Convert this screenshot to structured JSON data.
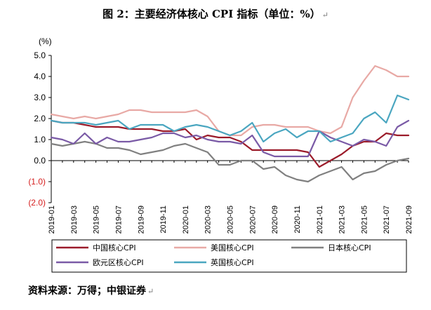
{
  "title": "图 2：主要经济体核心 CPI 指标（单位：%）",
  "title_mark": "↵",
  "source": "资料来源：万得；中银证券",
  "source_mark": "↵",
  "chart_data": {
    "type": "line",
    "ylabel": "(%)",
    "ylim": [
      -2.0,
      5.0
    ],
    "y_ticks": [
      {
        "value": 5.0,
        "label": "5.0"
      },
      {
        "value": 4.0,
        "label": "4.0"
      },
      {
        "value": 3.0,
        "label": "3.0"
      },
      {
        "value": 2.0,
        "label": "2.0"
      },
      {
        "value": 1.0,
        "label": "1.0"
      },
      {
        "value": 0.0,
        "label": "0.0"
      },
      {
        "value": -1.0,
        "label": "(1.0)"
      },
      {
        "value": -2.0,
        "label": "(2.0)"
      }
    ],
    "negative_tick_color": "#d62020",
    "grid": false,
    "legend_position": "bottom",
    "x": [
      "2019-01",
      "2019-02",
      "2019-03",
      "2019-04",
      "2019-05",
      "2019-06",
      "2019-07",
      "2019-08",
      "2019-09",
      "2019-10",
      "2019-11",
      "2019-12",
      "2020-01",
      "2020-02",
      "2020-03",
      "2020-04",
      "2020-05",
      "2020-06",
      "2020-07",
      "2020-08",
      "2020-09",
      "2020-10",
      "2020-11",
      "2020-12",
      "2021-01",
      "2021-02",
      "2021-03",
      "2021-04",
      "2021-05",
      "2021-06",
      "2021-07",
      "2021-08",
      "2021-09"
    ],
    "x_tick_labels": [
      "2019-01",
      "2019-03",
      "2019-05",
      "2019-07",
      "2019-09",
      "2019-11",
      "2020-01",
      "2020-03",
      "2020-05",
      "2020-07",
      "2020-09",
      "2020-11",
      "2021-01",
      "2021-03",
      "2021-05",
      "2021-07",
      "2021-09"
    ],
    "series": [
      {
        "name": "中国核心CPI",
        "color": "#9b1b2a",
        "values": [
          1.9,
          1.8,
          1.8,
          1.7,
          1.6,
          1.6,
          1.6,
          1.5,
          1.5,
          1.5,
          1.4,
          1.4,
          1.5,
          1.0,
          1.2,
          1.1,
          1.1,
          0.9,
          0.5,
          0.5,
          0.5,
          0.5,
          0.5,
          0.4,
          -0.3,
          0.0,
          0.3,
          0.7,
          0.9,
          0.9,
          1.3,
          1.2,
          1.2
        ]
      },
      {
        "name": "美国核心CPI",
        "color": "#e8a9a5",
        "values": [
          2.2,
          2.1,
          2.0,
          2.1,
          2.0,
          2.1,
          2.2,
          2.4,
          2.4,
          2.3,
          2.3,
          2.3,
          2.3,
          2.4,
          2.1,
          1.4,
          1.2,
          1.2,
          1.6,
          1.7,
          1.7,
          1.6,
          1.6,
          1.6,
          1.4,
          1.3,
          1.6,
          3.0,
          3.8,
          4.5,
          4.3,
          4.0,
          4.0
        ]
      },
      {
        "name": "日本核心CPI",
        "color": "#808080",
        "values": [
          0.8,
          0.7,
          0.8,
          0.9,
          0.8,
          0.6,
          0.6,
          0.5,
          0.3,
          0.4,
          0.5,
          0.7,
          0.8,
          0.6,
          0.4,
          -0.2,
          -0.2,
          0.0,
          0.0,
          -0.4,
          -0.3,
          -0.7,
          -0.9,
          -1.0,
          -0.7,
          -0.5,
          -0.3,
          -0.9,
          -0.6,
          -0.5,
          -0.2,
          0.0,
          0.1
        ]
      },
      {
        "name": "欧元区核心CPI",
        "color": "#7a5aa6",
        "values": [
          1.1,
          1.0,
          0.8,
          1.3,
          0.8,
          1.1,
          0.9,
          0.9,
          1.0,
          1.1,
          1.3,
          1.3,
          1.1,
          1.2,
          1.0,
          0.9,
          0.9,
          0.8,
          1.2,
          0.4,
          0.2,
          0.2,
          0.2,
          0.2,
          1.4,
          1.1,
          0.9,
          0.7,
          1.0,
          0.9,
          0.7,
          1.6,
          1.9
        ]
      },
      {
        "name": "英国核心CPI",
        "color": "#4aa6c0",
        "values": [
          1.9,
          1.8,
          1.8,
          1.8,
          1.7,
          1.8,
          1.9,
          1.5,
          1.7,
          1.7,
          1.7,
          1.4,
          1.6,
          1.7,
          1.6,
          1.4,
          1.2,
          1.4,
          1.8,
          0.9,
          1.3,
          1.5,
          1.1,
          1.4,
          1.4,
          0.9,
          1.1,
          1.3,
          2.0,
          2.3,
          1.8,
          3.1,
          2.9
        ]
      }
    ]
  }
}
